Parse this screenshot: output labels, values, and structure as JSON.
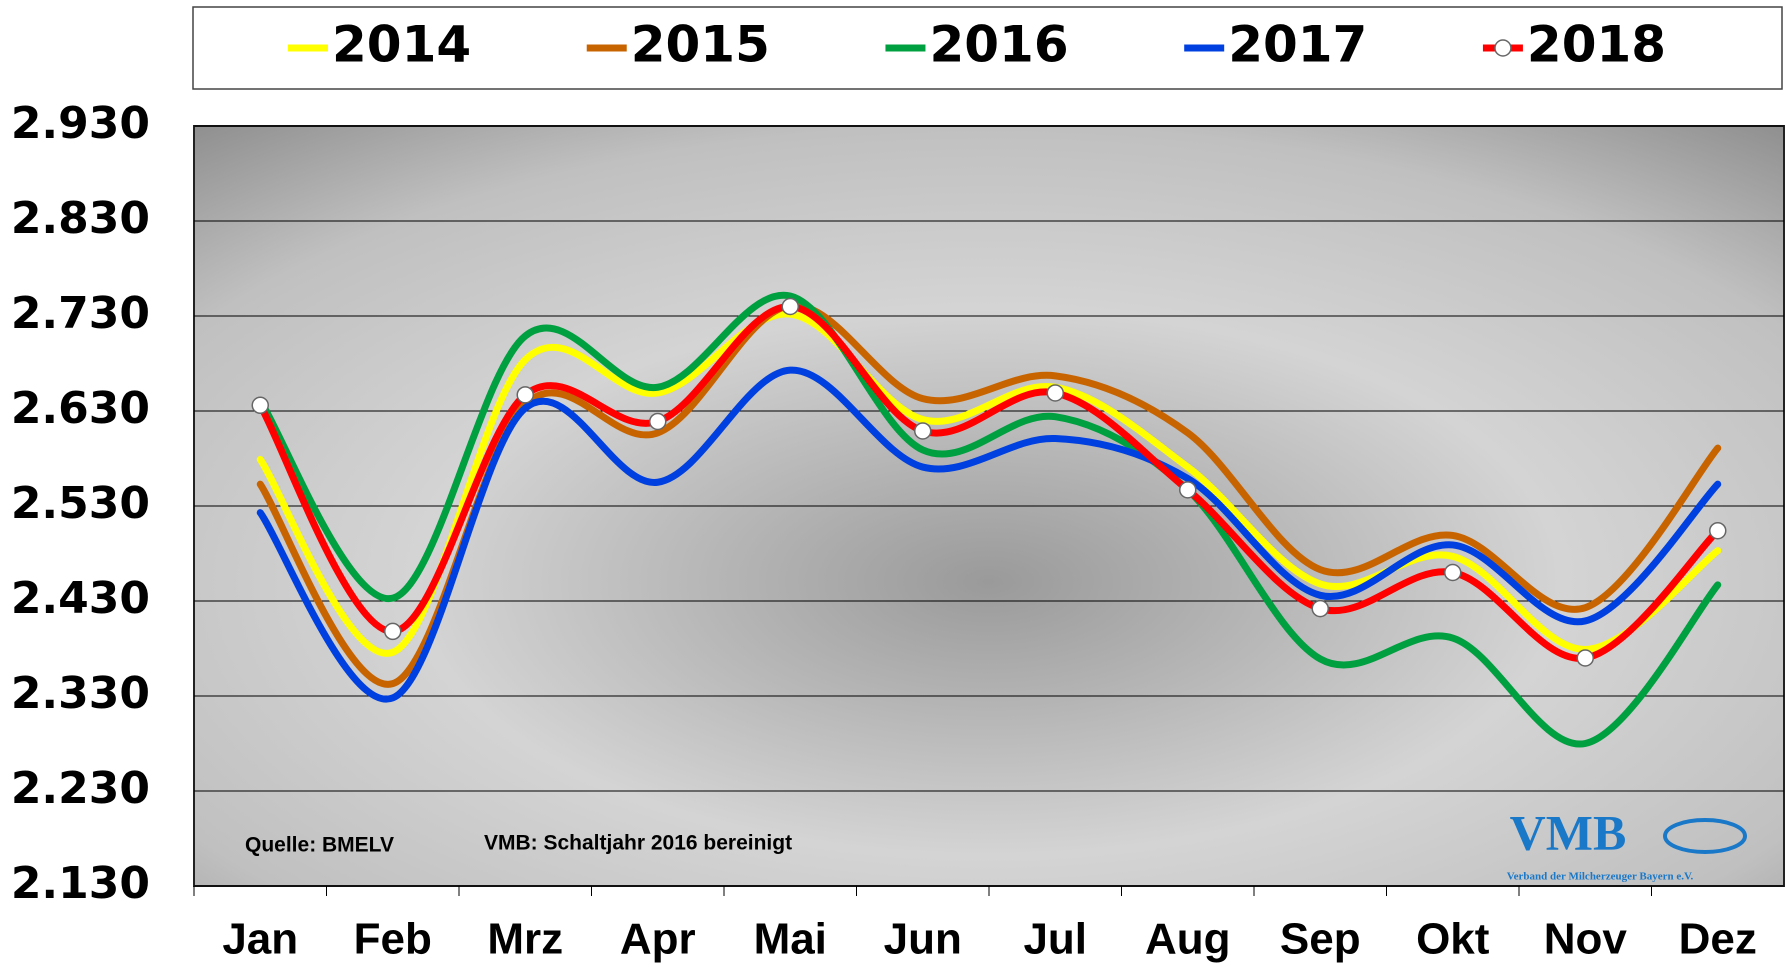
{
  "chart_data": {
    "type": "line",
    "categories": [
      "Jan",
      "Feb",
      "Mrz",
      "Apr",
      "Mai",
      "Jun",
      "Jul",
      "Aug",
      "Sep",
      "Okt",
      "Nov",
      "Dez"
    ],
    "series": [
      {
        "name": "2014",
        "color": "#ffff00",
        "values": [
          2579,
          2376,
          2684,
          2649,
          2732,
          2621,
          2655,
          2571,
          2448,
          2477,
          2379,
          2483
        ]
      },
      {
        "name": "2015",
        "color": "#c86400",
        "values": [
          2553,
          2343,
          2637,
          2607,
          2741,
          2643,
          2667,
          2607,
          2463,
          2499,
          2423,
          2591
        ]
      },
      {
        "name": "2016",
        "color": "#00a040",
        "values": [
          2641,
          2433,
          2709,
          2655,
          2751,
          2589,
          2624,
          2547,
          2369,
          2391,
          2280,
          2447
        ]
      },
      {
        "name": "2017",
        "color": "#0040e0",
        "values": [
          2523,
          2328,
          2633,
          2555,
          2673,
          2571,
          2601,
          2559,
          2436,
          2489,
          2409,
          2553
        ]
      },
      {
        "name": "2018",
        "color": "#ff0000",
        "markers": true,
        "values": [
          2636,
          2398,
          2647,
          2619,
          2740,
          2609,
          2649,
          2547,
          2422,
          2460,
          2370,
          2504
        ]
      }
    ],
    "ylim": [
      2130,
      2930
    ],
    "yticks": [
      {
        "value": 2130,
        "label": "2.130"
      },
      {
        "value": 2230,
        "label": "2.230"
      },
      {
        "value": 2330,
        "label": "2.330"
      },
      {
        "value": 2430,
        "label": "2.430"
      },
      {
        "value": 2530,
        "label": "2.530"
      },
      {
        "value": 2630,
        "label": "2.630"
      },
      {
        "value": 2730,
        "label": "2.730"
      },
      {
        "value": 2830,
        "label": "2.830"
      },
      {
        "value": 2930,
        "label": "2.930"
      }
    ],
    "grid": true,
    "legend": "top",
    "annotations": [
      "Quelle: BMELV",
      "VMB: Schaltjahr 2016 bereinigt"
    ],
    "logo": {
      "text": "VMB",
      "subtext": "Verband der Milcherzeuger Bayern e.V."
    }
  }
}
